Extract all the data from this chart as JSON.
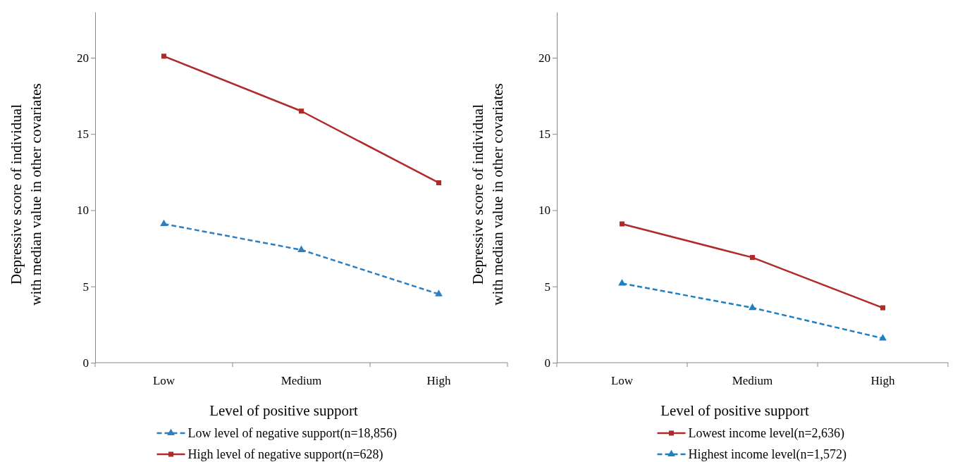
{
  "chart_data": [
    {
      "type": "line",
      "categories": [
        "Low",
        "Medium",
        "High"
      ],
      "xlabel": "Level of positive support",
      "ylabel": "Depressive score of individual\nwith median value in other covariates",
      "ylim": [
        0,
        23
      ],
      "yticks": [
        0,
        5,
        10,
        15,
        20
      ],
      "legend": "bottom",
      "grid": false,
      "series": [
        {
          "name": "Low level of negative support(n=18,856)",
          "color": "#2f7fc0",
          "values": [
            9.1,
            7.4,
            4.5
          ],
          "marker": "triangle",
          "line_style": "dashed"
        },
        {
          "name": "High level of negative support(n=628)",
          "color": "#b02a2a",
          "values": [
            20.1,
            16.5,
            11.8
          ],
          "marker": "square",
          "line_style": "solid"
        }
      ]
    },
    {
      "type": "line",
      "categories": [
        "Low",
        "Medium",
        "High"
      ],
      "xlabel": "Level of positive support",
      "ylabel": "Depressive score of individual\nwith median value in other covariates",
      "ylim": [
        0,
        23
      ],
      "yticks": [
        0,
        5,
        10,
        15,
        20
      ],
      "legend": "bottom",
      "grid": false,
      "series": [
        {
          "name": "Lowest income level(n=2,636)",
          "color": "#b02a2a",
          "values": [
            9.1,
            6.9,
            3.6
          ],
          "marker": "square",
          "line_style": "solid"
        },
        {
          "name": "Highest income level(n=1,572)",
          "color": "#1f7fc0",
          "values": [
            5.2,
            3.6,
            1.6
          ],
          "marker": "triangle",
          "line_style": "dashed"
        }
      ]
    }
  ]
}
